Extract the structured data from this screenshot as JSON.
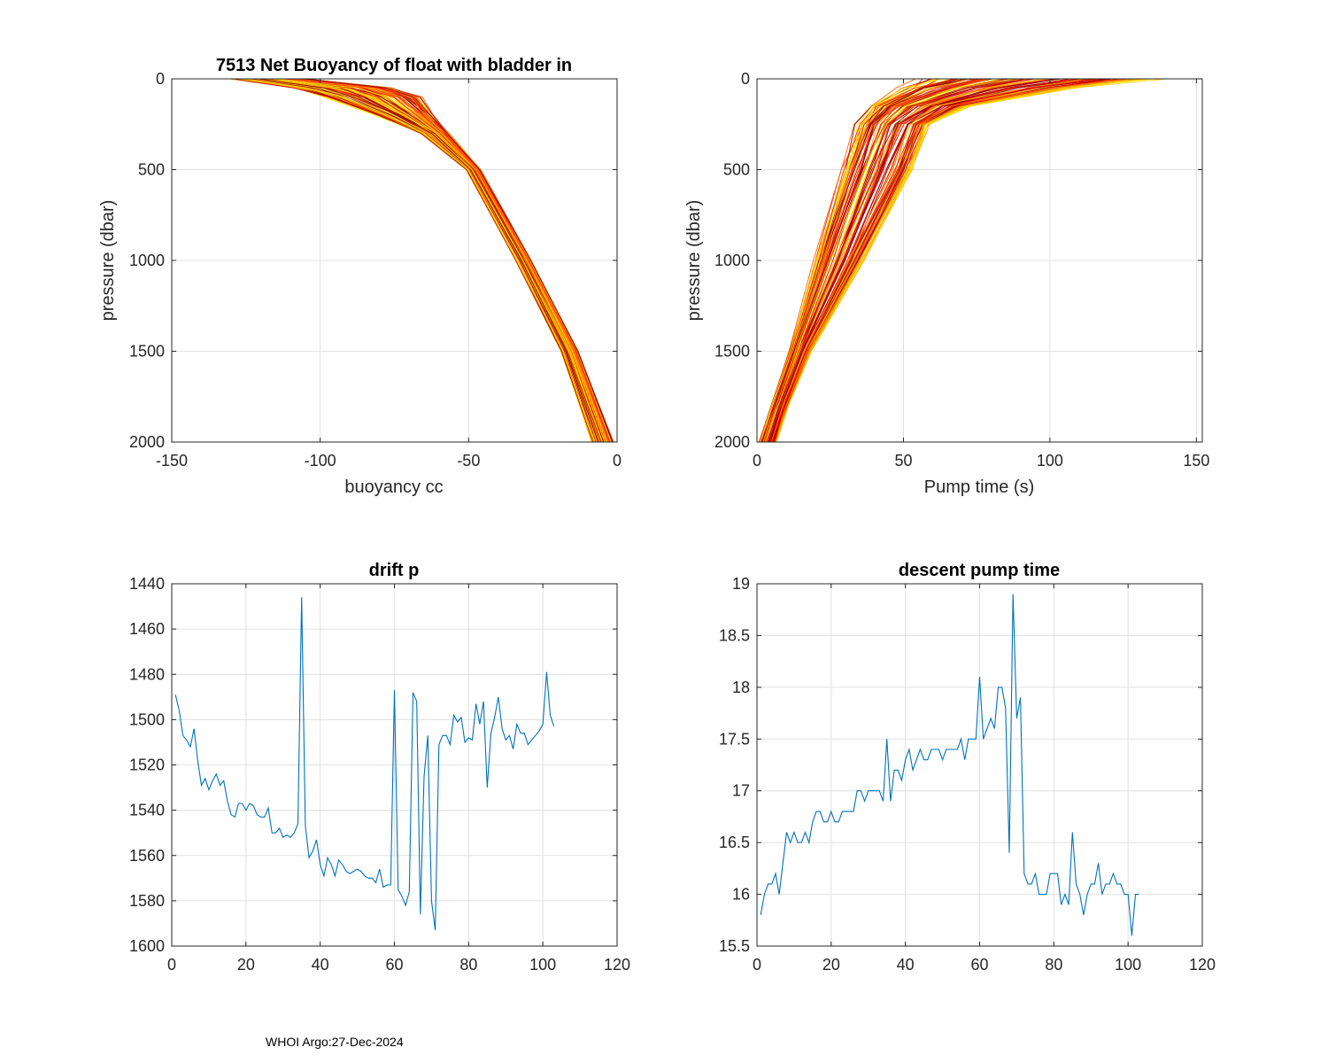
{
  "footer": "WHOI Argo:27-Dec-2024",
  "chart_data": [
    {
      "id": "buoyancy",
      "type": "line",
      "title": "7513 Net Buoyancy of float with bladder in",
      "xlabel": "buoyancy cc",
      "ylabel": "pressure (dbar)",
      "xlim": [
        -150,
        0
      ],
      "ylim": [
        0,
        2000
      ],
      "y_reversed": true,
      "xticks": [
        -150,
        -100,
        -50,
        0
      ],
      "yticks": [
        0,
        500,
        1000,
        1500,
        2000
      ],
      "grid": true,
      "colormap": [
        "#8b0000",
        "#c00000",
        "#ff2000",
        "#ff6000",
        "#ffa000",
        "#ffd000",
        "#ffe600"
      ],
      "profile_count": 103,
      "profile_shape": {
        "pressure": [
          0,
          50,
          100,
          200,
          300,
          500,
          1000,
          1500,
          2000
        ],
        "buoyancy_min": [
          -135,
          -115,
          -105,
          -85,
          -68,
          -52,
          -35,
          -20,
          -10
        ],
        "buoyancy_max": [
          -100,
          -70,
          -60,
          -58,
          -55,
          -45,
          -28,
          -12,
          0
        ]
      }
    },
    {
      "id": "pumptime",
      "type": "line",
      "title": "",
      "xlabel": "Pump time (s)",
      "ylabel": "pressure (dbar)",
      "xlim": [
        0,
        152
      ],
      "ylim": [
        0,
        2000
      ],
      "y_reversed": true,
      "xticks": [
        0,
        50,
        100,
        150
      ],
      "yticks": [
        0,
        500,
        1000,
        1500,
        2000
      ],
      "grid": true,
      "colormap": [
        "#8b0000",
        "#c00000",
        "#ff2000",
        "#ff6000",
        "#ffa000",
        "#ffd000",
        "#ffe600"
      ],
      "profile_count": 103,
      "profile_shape": {
        "pressure": [
          0,
          50,
          150,
          250,
          500,
          1000,
          1500,
          1800,
          2000
        ],
        "time_min": [
          45,
          40,
          33,
          30,
          25,
          17,
          10,
          4,
          0
        ],
        "time_max": [
          152,
          120,
          80,
          65,
          58,
          40,
          20,
          12,
          8
        ]
      }
    },
    {
      "id": "driftp",
      "type": "line",
      "title": "drift p",
      "xlabel": "",
      "ylabel": "",
      "xlim": [
        0,
        120
      ],
      "ylim": [
        1440,
        1600
      ],
      "y_reversed": true,
      "xticks": [
        0,
        20,
        40,
        60,
        80,
        100,
        120
      ],
      "yticks": [
        1440,
        1460,
        1480,
        1500,
        1520,
        1540,
        1560,
        1580,
        1600
      ],
      "grid": true,
      "color": "#0072bd",
      "x": [
        1,
        2,
        3,
        4,
        5,
        6,
        7,
        8,
        9,
        10,
        11,
        12,
        13,
        14,
        15,
        16,
        17,
        18,
        19,
        20,
        21,
        22,
        23,
        24,
        25,
        26,
        27,
        28,
        29,
        30,
        31,
        32,
        33,
        34,
        35,
        36,
        37,
        38,
        39,
        40,
        41,
        42,
        43,
        44,
        45,
        46,
        47,
        48,
        49,
        50,
        51,
        52,
        53,
        54,
        55,
        56,
        57,
        58,
        59,
        60,
        61,
        62,
        63,
        64,
        65,
        66,
        67,
        68,
        69,
        70,
        71,
        72,
        73,
        74,
        75,
        76,
        77,
        78,
        79,
        80,
        81,
        82,
        83,
        84,
        85,
        86,
        87,
        88,
        89,
        90,
        91,
        92,
        93,
        94,
        95,
        96,
        97,
        98,
        99,
        100,
        101,
        102,
        103
      ],
      "values": [
        1489,
        1496,
        1507,
        1509,
        1512,
        1504,
        1518,
        1529,
        1526,
        1531,
        1527,
        1524,
        1529,
        1527,
        1536,
        1542,
        1543,
        1537,
        1537,
        1540,
        1537,
        1538,
        1542,
        1543,
        1543,
        1539,
        1550,
        1550,
        1548,
        1552,
        1551,
        1552,
        1550,
        1546,
        1446,
        1547,
        1561,
        1558,
        1553,
        1564,
        1569,
        1561,
        1564,
        1569,
        1562,
        1564,
        1567,
        1568,
        1567,
        1566,
        1567,
        1569,
        1570,
        1570,
        1572,
        1566,
        1574,
        1573,
        1573,
        1487,
        1575,
        1578,
        1582,
        1576,
        1488,
        1492,
        1586,
        1525,
        1507,
        1580,
        1593,
        1511,
        1507,
        1507,
        1511,
        1498,
        1501,
        1499,
        1510,
        1508,
        1509,
        1493,
        1502,
        1492,
        1530,
        1506,
        1499,
        1490,
        1504,
        1509,
        1507,
        1513,
        1502,
        1506,
        1506,
        1511,
        1509,
        1507,
        1505,
        1502,
        1479,
        1498,
        1503
      ]
    },
    {
      "id": "descentpump",
      "type": "line",
      "title": "descent pump time",
      "xlabel": "",
      "ylabel": "",
      "xlim": [
        0,
        120
      ],
      "ylim": [
        15.5,
        19
      ],
      "xticks": [
        0,
        20,
        40,
        60,
        80,
        100,
        120
      ],
      "yticks": [
        15.5,
        16,
        16.5,
        17,
        17.5,
        18,
        18.5,
        19
      ],
      "grid": true,
      "color": "#0072bd",
      "x": [
        1,
        2,
        3,
        4,
        5,
        6,
        7,
        8,
        9,
        10,
        11,
        12,
        13,
        14,
        15,
        16,
        17,
        18,
        19,
        20,
        21,
        22,
        23,
        24,
        25,
        26,
        27,
        28,
        29,
        30,
        31,
        32,
        33,
        34,
        35,
        36,
        37,
        38,
        39,
        40,
        41,
        42,
        43,
        44,
        45,
        46,
        47,
        48,
        49,
        50,
        51,
        52,
        53,
        54,
        55,
        56,
        57,
        58,
        59,
        60,
        61,
        62,
        63,
        64,
        65,
        66,
        67,
        68,
        69,
        70,
        71,
        72,
        73,
        74,
        75,
        76,
        77,
        78,
        79,
        80,
        81,
        82,
        83,
        84,
        85,
        86,
        87,
        88,
        89,
        90,
        91,
        92,
        93,
        94,
        95,
        96,
        97,
        98,
        99,
        100,
        101,
        102,
        103
      ],
      "values": [
        15.8,
        16.0,
        16.1,
        16.1,
        16.2,
        16.0,
        16.3,
        16.6,
        16.5,
        16.6,
        16.5,
        16.5,
        16.6,
        16.5,
        16.7,
        16.8,
        16.8,
        16.7,
        16.7,
        16.8,
        16.7,
        16.7,
        16.8,
        16.8,
        16.8,
        16.8,
        17.0,
        17.0,
        16.9,
        17.0,
        17.0,
        17.0,
        17.0,
        16.9,
        17.5,
        16.9,
        17.2,
        17.2,
        17.1,
        17.3,
        17.4,
        17.2,
        17.3,
        17.4,
        17.3,
        17.3,
        17.4,
        17.4,
        17.4,
        17.3,
        17.4,
        17.4,
        17.4,
        17.4,
        17.5,
        17.3,
        17.5,
        17.5,
        17.5,
        18.1,
        17.5,
        17.6,
        17.7,
        17.6,
        18.0,
        18.0,
        17.8,
        16.4,
        18.9,
        17.7,
        17.9,
        16.2,
        16.1,
        16.1,
        16.2,
        16.0,
        16.0,
        16.0,
        16.2,
        16.2,
        16.2,
        15.9,
        16.0,
        15.9,
        16.6,
        16.1,
        16.0,
        15.8,
        16.0,
        16.1,
        16.1,
        16.3,
        16.0,
        16.1,
        16.1,
        16.2,
        16.1,
        16.1,
        16.0,
        16.0,
        15.6,
        16.0,
        16.0
      ]
    }
  ]
}
